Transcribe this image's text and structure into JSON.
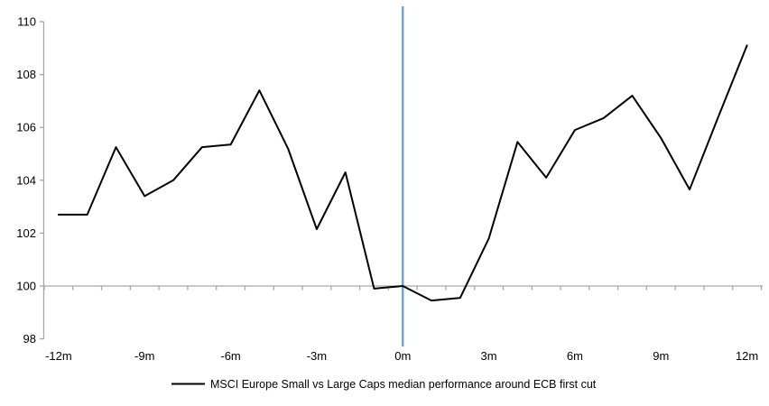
{
  "chart_data": {
    "type": "line",
    "title": "",
    "x_categories": [
      "-12m",
      "-11m",
      "-10m",
      "-9m",
      "-8m",
      "-7m",
      "-6m",
      "-5m",
      "-4m",
      "-3m",
      "-2m",
      "-1m",
      "0m",
      "1m",
      "2m",
      "3m",
      "4m",
      "5m",
      "6m",
      "7m",
      "8m",
      "9m",
      "10m",
      "11m",
      "12m"
    ],
    "x_axis_shown_tick_labels": [
      "-12m",
      "-9m",
      "-6m",
      "-3m",
      "0m",
      "3m",
      "6m",
      "9m",
      "12m"
    ],
    "x_label_every_n": 3,
    "series": [
      {
        "name": "MSCI Europe Small vs Large Caps median performance around ECB first cut",
        "values": [
          102.7,
          102.7,
          105.25,
          103.4,
          104.0,
          105.25,
          105.35,
          107.4,
          105.2,
          102.15,
          104.3,
          99.9,
          100.0,
          99.45,
          99.55,
          101.8,
          105.45,
          104.1,
          105.9,
          106.35,
          107.2,
          105.6,
          103.65,
          106.4,
          109.1
        ]
      }
    ],
    "y_ticks": [
      98,
      100,
      102,
      104,
      106,
      108,
      110
    ],
    "ylim": [
      98,
      110
    ],
    "baseline_value": 100,
    "event_line_at_category": "0m",
    "grid": "horizontal line at 100 only",
    "legend_position": "bottom-center",
    "colors": {
      "series_line": "#000000",
      "axis_gray": "#A6A6A6",
      "event_line_blue": "#6FA7DC",
      "text": "#000000",
      "background": "#FFFFFF"
    }
  }
}
